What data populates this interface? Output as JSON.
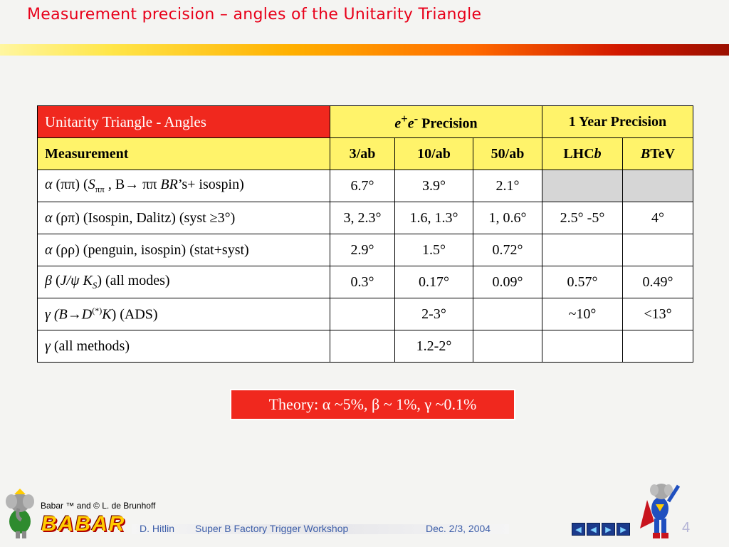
{
  "title": "Measurement precision – angles of the Unitarity Triangle",
  "table": {
    "header_row1": {
      "col1": "Unitarity Triangle -  Angles",
      "ee_label": "e",
      "ee_sup1": "+",
      "ee_label2": "e",
      "ee_sup2": "-",
      "ee_precision": " Precision",
      "one_year": "1 Year Precision"
    },
    "header_row2": {
      "measurement": "Measurement",
      "c1": "3/ab",
      "c2": "10/ab",
      "c3": "50/ab",
      "lhc_text": "LHC",
      "lhc_b": "b",
      "btev_b": "B",
      "btev_text": "TeV"
    },
    "rows": [
      {
        "label_alpha": "α",
        "label_pp": " (ππ) (",
        "label_S": "S",
        "label_Ssub": "ππ",
        "label_mid": " , B→  ππ ",
        "label_BR": "BR",
        "label_end": "’s+ isospin)",
        "v3": "6.7°",
        "v10": "3.9°",
        "v50": "2.1°",
        "lhcb": "",
        "btev": ""
      },
      {
        "label_alpha": "α",
        "label_text": " (ρπ) (Isospin, Dalitz) (syst ≥3°)",
        "v3": "3, 2.3°",
        "v10": "1.6, 1.3°",
        "v50": "1, 0.6°",
        "lhcb": "2.5° -5°",
        "btev": "4°"
      },
      {
        "label_alpha": "α",
        "label_text": " (ρρ) (penguin, isospin) (stat+syst)",
        "v3": "2.9°",
        "v10": "1.5°",
        "v50": "0.72°",
        "lhcb": "",
        "btev": ""
      },
      {
        "label_beta": "β",
        "label_open": " (",
        "label_J": "J/ψ K",
        "label_Jsub": "S",
        "label_close": ") (all modes)",
        "v3": "0.3°",
        "v10": "0.17°",
        "v50": "0.09°",
        "lhcb": "0.57°",
        "btev": "0.49°"
      },
      {
        "label_gamma": "γ",
        "label_B": " (B→D",
        "label_star": "(*)",
        "label_K": "K",
        "label_end": ") (ADS)",
        "v3": "",
        "v10": "2-3°",
        "v50": "",
        "lhcb": "~10°",
        "btev": "<13°"
      },
      {
        "label_gamma": "γ",
        "label_text": " (all methods)",
        "v3": "",
        "v10": "1.2-2°",
        "v50": "",
        "lhcb": "",
        "btev": ""
      }
    ]
  },
  "theory": "Theory: α ~5%, β ~ 1%, γ ~0.1%",
  "footer": {
    "credit": "Babar ™ and © L. de Brunhoff",
    "logo": "BABAR",
    "author": "D. Hitlin",
    "event": "Super B Factory Trigger Workshop",
    "date": "Dec. 2/3, 2004",
    "page": "4",
    "nav": [
      "◀",
      "◀",
      "▶",
      "▶"
    ]
  },
  "colors": {
    "title": "#e8001a",
    "header_red": "#f0281e",
    "header_yellow": "#fff36a",
    "grey_cell": "#d6d6d6"
  }
}
